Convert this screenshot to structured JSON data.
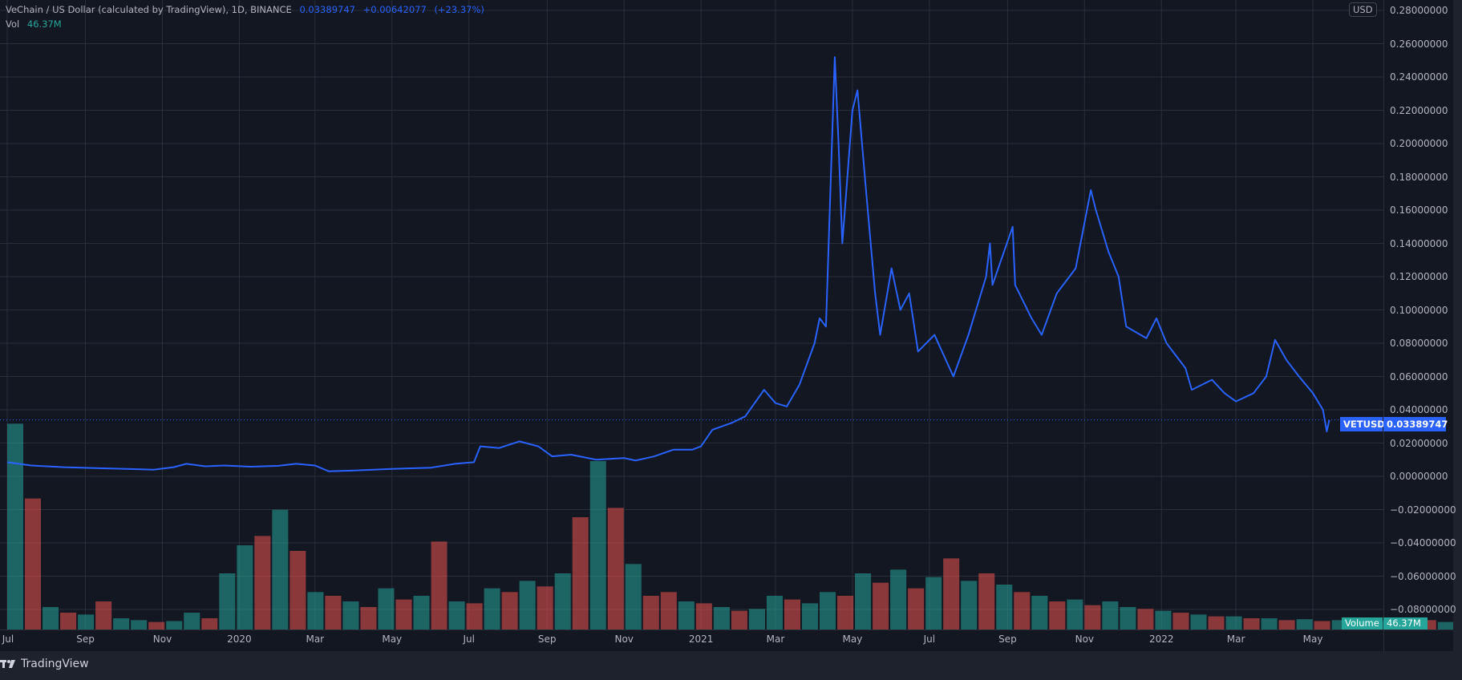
{
  "header": {
    "symbol_title": "VeChain / US Dollar (calculated by TradingView), 1D, BINANCE",
    "last_price": "0.03389747",
    "change": "+0.00642077",
    "change_pct": "(+23.37%)",
    "vol_label": "Vol",
    "vol_value": "46.37M"
  },
  "price_axis": {
    "currency_badge": "USD",
    "ticks": [
      "0.28000000",
      "0.26000000",
      "0.24000000",
      "0.22000000",
      "0.20000000",
      "0.18000000",
      "0.16000000",
      "0.14000000",
      "0.12000000",
      "0.10000000",
      "0.08000000",
      "0.06000000",
      "0.04000000",
      "0.02000000",
      "0.00000000",
      "−0.02000000",
      "−0.04000000",
      "−0.06000000",
      "−0.08000000"
    ],
    "tick_values": [
      0.28,
      0.26,
      0.24,
      0.22,
      0.2,
      0.18,
      0.16,
      0.14,
      0.12,
      0.1,
      0.08,
      0.06,
      0.04,
      0.02,
      0,
      -0.02,
      -0.04,
      -0.06,
      -0.08
    ],
    "symbol_tag": "VETUSD",
    "price_tag": "0.03389747",
    "volume_tag": "Volume",
    "volume_value_tag": "46.37M"
  },
  "time_axis": {
    "labels": [
      {
        "text": "Jul",
        "date": "2019-07-01"
      },
      {
        "text": "Sep",
        "date": "2019-09-01"
      },
      {
        "text": "Nov",
        "date": "2019-11-01"
      },
      {
        "text": "2020",
        "date": "2020-01-01"
      },
      {
        "text": "Mar",
        "date": "2020-03-01"
      },
      {
        "text": "May",
        "date": "2020-05-01"
      },
      {
        "text": "Jul",
        "date": "2020-07-01"
      },
      {
        "text": "Sep",
        "date": "2020-09-01"
      },
      {
        "text": "Nov",
        "date": "2020-11-01"
      },
      {
        "text": "2021",
        "date": "2021-01-01"
      },
      {
        "text": "Mar",
        "date": "2021-03-01"
      },
      {
        "text": "May",
        "date": "2021-05-01"
      },
      {
        "text": "Jul",
        "date": "2021-07-01"
      },
      {
        "text": "Sep",
        "date": "2021-09-01"
      },
      {
        "text": "Nov",
        "date": "2021-11-01"
      },
      {
        "text": "2022",
        "date": "2022-01-01"
      },
      {
        "text": "Mar",
        "date": "2022-03-01"
      },
      {
        "text": "May",
        "date": "2022-05-01"
      }
    ]
  },
  "colors": {
    "background": "#131722",
    "grid": "#2a2e39",
    "line": "#2962ff",
    "volume_up": "#26a69a",
    "volume_down": "#ef5350"
  },
  "footer": {
    "brand": "TradingView"
  },
  "chart_data": {
    "type": "line",
    "series": [
      {
        "name": "VETUSD",
        "points": [
          [
            "2019-07-01",
            0.0085
          ],
          [
            "2019-07-20",
            0.0065
          ],
          [
            "2019-08-15",
            0.0055
          ],
          [
            "2019-09-15",
            0.0048
          ],
          [
            "2019-10-15",
            0.0042
          ],
          [
            "2019-10-25",
            0.004
          ],
          [
            "2019-11-10",
            0.0055
          ],
          [
            "2019-11-20",
            0.0075
          ],
          [
            "2019-12-05",
            0.006
          ],
          [
            "2019-12-20",
            0.0065
          ],
          [
            "2020-01-10",
            0.0058
          ],
          [
            "2020-02-01",
            0.0063
          ],
          [
            "2020-02-15",
            0.0075
          ],
          [
            "2020-03-01",
            0.0065
          ],
          [
            "2020-03-12",
            0.003
          ],
          [
            "2020-04-01",
            0.0035
          ],
          [
            "2020-05-01",
            0.0045
          ],
          [
            "2020-06-01",
            0.0052
          ],
          [
            "2020-06-20",
            0.0075
          ],
          [
            "2020-07-05",
            0.0085
          ],
          [
            "2020-07-10",
            0.018
          ],
          [
            "2020-07-25",
            0.017
          ],
          [
            "2020-08-10",
            0.021
          ],
          [
            "2020-08-25",
            0.018
          ],
          [
            "2020-09-05",
            0.012
          ],
          [
            "2020-09-20",
            0.013
          ],
          [
            "2020-10-10",
            0.01
          ],
          [
            "2020-11-01",
            0.011
          ],
          [
            "2020-11-10",
            0.0095
          ],
          [
            "2020-11-25",
            0.012
          ],
          [
            "2020-12-10",
            0.016
          ],
          [
            "2020-12-25",
            0.016
          ],
          [
            "2021-01-01",
            0.018
          ],
          [
            "2021-01-10",
            0.028
          ],
          [
            "2021-01-25",
            0.032
          ],
          [
            "2021-02-05",
            0.036
          ],
          [
            "2021-02-20",
            0.052
          ],
          [
            "2021-03-01",
            0.044
          ],
          [
            "2021-03-10",
            0.042
          ],
          [
            "2021-03-20",
            0.055
          ],
          [
            "2021-04-01",
            0.08
          ],
          [
            "2021-04-05",
            0.095
          ],
          [
            "2021-04-10",
            0.09
          ],
          [
            "2021-04-17",
            0.252
          ],
          [
            "2021-04-20",
            0.2
          ],
          [
            "2021-04-23",
            0.14
          ],
          [
            "2021-04-25",
            0.16
          ],
          [
            "2021-05-01",
            0.22
          ],
          [
            "2021-05-05",
            0.232
          ],
          [
            "2021-05-12",
            0.17
          ],
          [
            "2021-05-19",
            0.11
          ],
          [
            "2021-05-23",
            0.085
          ],
          [
            "2021-06-01",
            0.125
          ],
          [
            "2021-06-08",
            0.1
          ],
          [
            "2021-06-15",
            0.11
          ],
          [
            "2021-06-22",
            0.075
          ],
          [
            "2021-07-05",
            0.085
          ],
          [
            "2021-07-20",
            0.06
          ],
          [
            "2021-08-01",
            0.085
          ],
          [
            "2021-08-15",
            0.12
          ],
          [
            "2021-08-18",
            0.14
          ],
          [
            "2021-08-20",
            0.115
          ],
          [
            "2021-09-05",
            0.15
          ],
          [
            "2021-09-07",
            0.115
          ],
          [
            "2021-09-20",
            0.095
          ],
          [
            "2021-09-28",
            0.085
          ],
          [
            "2021-10-10",
            0.11
          ],
          [
            "2021-10-25",
            0.125
          ],
          [
            "2021-11-06",
            0.172
          ],
          [
            "2021-11-10",
            0.16
          ],
          [
            "2021-11-20",
            0.135
          ],
          [
            "2021-11-28",
            0.12
          ],
          [
            "2021-12-04",
            0.09
          ],
          [
            "2021-12-20",
            0.083
          ],
          [
            "2021-12-28",
            0.095
          ],
          [
            "2022-01-05",
            0.08
          ],
          [
            "2022-01-20",
            0.065
          ],
          [
            "2022-01-25",
            0.052
          ],
          [
            "2022-02-10",
            0.058
          ],
          [
            "2022-02-20",
            0.05
          ],
          [
            "2022-03-01",
            0.045
          ],
          [
            "2022-03-15",
            0.05
          ],
          [
            "2022-03-25",
            0.06
          ],
          [
            "2022-04-01",
            0.082
          ],
          [
            "2022-04-10",
            0.07
          ],
          [
            "2022-04-20",
            0.06
          ],
          [
            "2022-05-01",
            0.05
          ],
          [
            "2022-05-09",
            0.04
          ],
          [
            "2022-05-12",
            0.027
          ],
          [
            "2022-05-14",
            0.0339
          ]
        ]
      }
    ],
    "volume": {
      "start": "2019-07-01",
      "step_days": 14,
      "unit": "M",
      "values": [
        1100,
        -700,
        120,
        -90,
        80,
        -150,
        60,
        50,
        -40,
        45,
        90,
        -60,
        300,
        450,
        -500,
        640,
        -420,
        200,
        -180,
        150,
        -120,
        220,
        -160,
        180,
        -470,
        150,
        -140,
        220,
        -200,
        260,
        -230,
        300,
        -600,
        900,
        -650,
        350,
        -180,
        -200,
        150,
        -140,
        120,
        -100,
        110,
        180,
        -160,
        140,
        200,
        -180,
        300,
        -250,
        320,
        -220,
        280,
        -380,
        260,
        -300,
        240,
        -200,
        180,
        -150,
        160,
        -130,
        150,
        120,
        -110,
        100,
        -90,
        80,
        -70,
        70,
        -60,
        60,
        -50,
        55,
        -45,
        50,
        -40,
        45,
        -42,
        60,
        -50,
        40,
        46
      ]
    },
    "ylim": [
      -0.09,
      0.285
    ],
    "grid": true
  }
}
